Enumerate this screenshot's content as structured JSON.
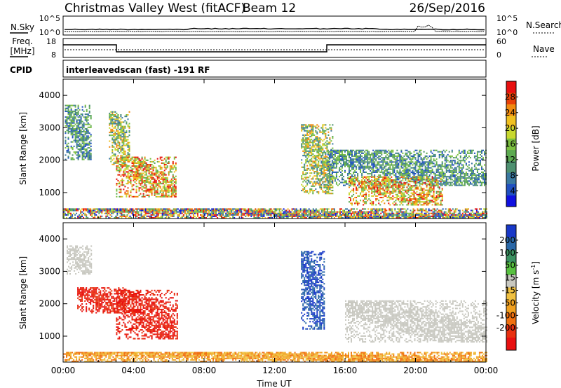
{
  "header": {
    "title": "Christmas Valley West (fitACF)",
    "beam": "Beam 12",
    "date": "26/Sep/2016"
  },
  "sky_panel": {
    "left_label": "N.Sky",
    "right_label": "N.Search",
    "left_ticks": [
      "10^5",
      "10^0"
    ],
    "right_ticks": [
      "10^5",
      "10^0"
    ]
  },
  "freq_panel": {
    "left_label_1": "Freq.",
    "left_label_2": "[MHz]",
    "right_label": "Nave",
    "left_ticks": [
      "18",
      "8"
    ],
    "right_ticks": [
      "60",
      "0"
    ]
  },
  "cpid": {
    "label": "CPID",
    "text": "interleavedscan (fast) -191 RF"
  },
  "colors": {
    "background": "#ffffff",
    "axis": "#000000",
    "ground_scatter": "#c8c8c0"
  },
  "chart_data": [
    {
      "type": "heatmap",
      "name": "power_panel",
      "ylabel": "Slant Range [km]",
      "xlabel": "",
      "ylim": [
        200,
        4500
      ],
      "xlim": [
        0,
        24
      ],
      "yticks": [
        "1000",
        "2000",
        "3000",
        "4000"
      ],
      "colorbar": {
        "label": "Power [dB]",
        "ticks": [
          "4",
          "8",
          "12",
          "16",
          "20",
          "24",
          "28"
        ],
        "colors": [
          "#1010e0",
          "#2050c0",
          "#3a78a0",
          "#4e9070",
          "#5caa50",
          "#7cc040",
          "#c8d830",
          "#f0c020",
          "#f08a10",
          "#e84008",
          "#e81010"
        ]
      },
      "regions": [
        {
          "t": [
            0.1,
            1.6
          ],
          "r": [
            2000,
            3700
          ],
          "level": "low"
        },
        {
          "t": [
            2.6,
            3.8
          ],
          "r": [
            1800,
            3500
          ],
          "level": "mid"
        },
        {
          "t": [
            3.0,
            6.4
          ],
          "r": [
            850,
            2100
          ],
          "level": "high"
        },
        {
          "t": [
            13.5,
            15.3
          ],
          "r": [
            950,
            3100
          ],
          "level": "mid"
        },
        {
          "t": [
            15.0,
            24.0
          ],
          "r": [
            1200,
            2300
          ],
          "level": "low"
        },
        {
          "t": [
            16.2,
            21.5
          ],
          "r": [
            600,
            1500
          ],
          "level": "high"
        },
        {
          "t": [
            0.0,
            24.0
          ],
          "r": [
            200,
            500
          ],
          "level": "mixed"
        }
      ]
    },
    {
      "type": "heatmap",
      "name": "velocity_panel",
      "ylabel": "Slant Range [km]",
      "xlabel": "Time UT",
      "ylim": [
        200,
        4500
      ],
      "xlim": [
        0,
        24
      ],
      "yticks": [
        "1000",
        "2000",
        "3000",
        "4000"
      ],
      "xticks": [
        "00:00",
        "04:00",
        "08:00",
        "12:00",
        "16:00",
        "20:00",
        "00:00"
      ],
      "colorbar": {
        "label": "Velocity [m s",
        "label_sup": "-1",
        "label_end": "]",
        "ticks": [
          "200",
          "100",
          "50",
          "15",
          "-15",
          "-50",
          "-100",
          "-200"
        ],
        "colors": [
          "#1838c8",
          "#2a68a8",
          "#3a9060",
          "#58c040",
          "#c8c8c0",
          "#f0c040",
          "#f0a020",
          "#f07010",
          "#e83010",
          "#e81010"
        ]
      },
      "regions": [
        {
          "t": [
            0.2,
            1.6
          ],
          "r": [
            2900,
            3800
          ],
          "vel": "ground"
        },
        {
          "t": [
            0.8,
            3.6
          ],
          "r": [
            1700,
            2500
          ],
          "vel": "-200"
        },
        {
          "t": [
            3.0,
            6.5
          ],
          "r": [
            900,
            2400
          ],
          "vel": "-200"
        },
        {
          "t": [
            13.5,
            14.8
          ],
          "r": [
            1200,
            3600
          ],
          "vel": "200"
        },
        {
          "t": [
            16.0,
            24.0
          ],
          "r": [
            800,
            2100
          ],
          "vel": "ground"
        },
        {
          "t": [
            0.0,
            24.0
          ],
          "r": [
            200,
            500
          ],
          "vel": "-50"
        }
      ]
    }
  ]
}
